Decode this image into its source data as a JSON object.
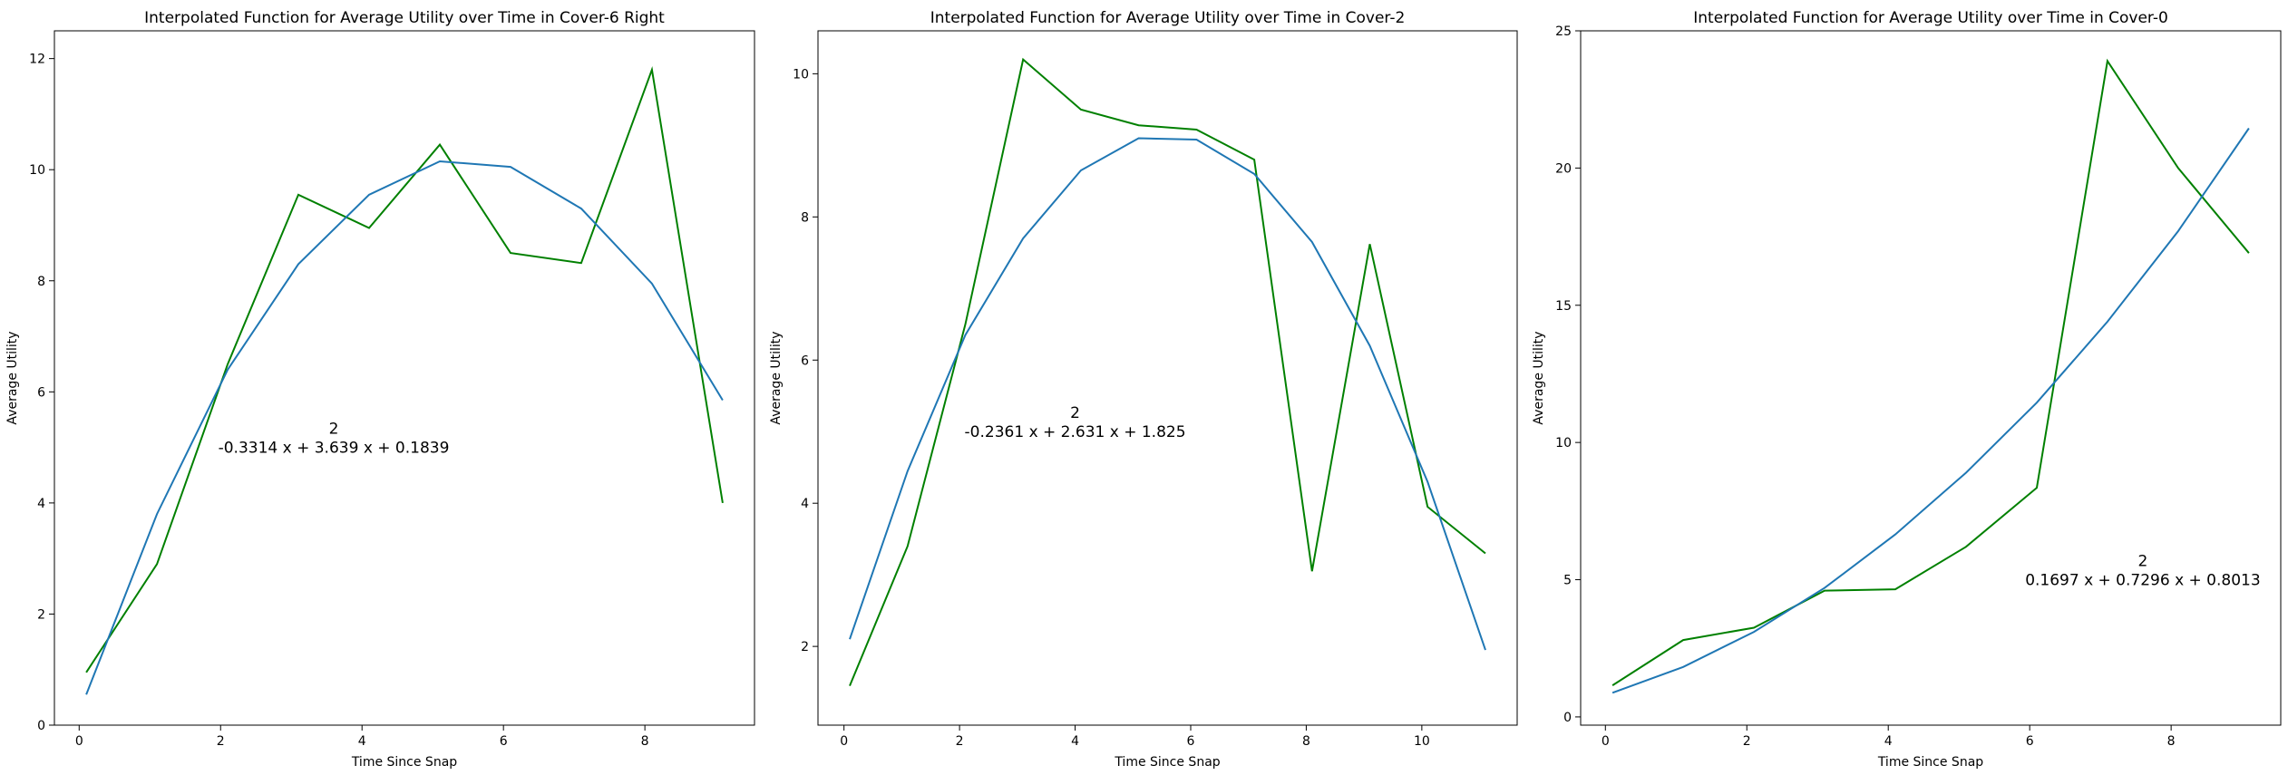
{
  "chart_data": [
    {
      "type": "line",
      "title": "Interpolated Function for Average Utility over Time in Cover-6 Right",
      "xlabel": "Time Since Snap",
      "ylabel": "Average Utility",
      "xlim": [
        -0.35,
        9.55
      ],
      "ylim": [
        0,
        12.5
      ],
      "xticks": [
        0,
        2,
        4,
        6,
        8
      ],
      "yticks": [
        0,
        2,
        4,
        6,
        8,
        10,
        12
      ],
      "grid": false,
      "legend": "none",
      "annotation": {
        "exponent": "2",
        "text": "-0.3314 x + 3.639 x + 0.1839",
        "x": 3.6,
        "y": 5.0
      },
      "series": [
        {
          "color": "#008000",
          "x": [
            0.1,
            1.1,
            2.1,
            3.1,
            4.1,
            5.1,
            6.1,
            7.1,
            8.1,
            9.1
          ],
          "y": [
            0.95,
            2.9,
            6.5,
            9.55,
            8.95,
            10.45,
            8.5,
            8.32,
            11.8,
            4.0
          ]
        },
        {
          "color": "#1f77b4",
          "x": [
            0.1,
            1.1,
            2.1,
            3.1,
            4.1,
            5.1,
            6.1,
            7.1,
            8.1,
            9.1
          ],
          "y": [
            0.55,
            3.8,
            6.4,
            8.3,
            9.55,
            10.15,
            10.05,
            9.3,
            7.95,
            5.85
          ]
        }
      ]
    },
    {
      "type": "line",
      "title": "Interpolated Function for Average Utility over Time in Cover-2",
      "xlabel": "Time Since Snap",
      "ylabel": "Average Utility",
      "xlim": [
        -0.45,
        11.65
      ],
      "ylim": [
        0.9,
        10.6
      ],
      "xticks": [
        0,
        2,
        4,
        6,
        8,
        10
      ],
      "yticks": [
        2,
        4,
        6,
        8,
        10
      ],
      "grid": false,
      "legend": "none",
      "annotation": {
        "exponent": "2",
        "text": "-0.2361 x + 2.631 x + 1.825",
        "x": 4.0,
        "y": 5.0
      },
      "series": [
        {
          "color": "#008000",
          "x": [
            0.1,
            1.1,
            2.1,
            3.1,
            4.1,
            5.1,
            6.1,
            7.1,
            8.1,
            9.1,
            10.1,
            11.1
          ],
          "y": [
            1.45,
            3.4,
            6.5,
            10.2,
            9.5,
            9.28,
            9.22,
            8.8,
            3.05,
            7.62,
            3.95,
            3.3
          ]
        },
        {
          "color": "#1f77b4",
          "x": [
            0.1,
            1.1,
            2.1,
            3.1,
            4.1,
            5.1,
            6.1,
            7.1,
            8.1,
            9.1,
            10.1,
            11.1
          ],
          "y": [
            2.1,
            4.45,
            6.35,
            7.7,
            8.65,
            9.1,
            9.08,
            8.6,
            7.65,
            6.2,
            4.3,
            1.95
          ]
        }
      ]
    },
    {
      "type": "line",
      "title": "Interpolated Function for Average Utility over Time in Cover-0",
      "xlabel": "Time Since Snap",
      "ylabel": "Average Utility",
      "xlim": [
        -0.35,
        9.55
      ],
      "ylim": [
        -0.3,
        25.0
      ],
      "xticks": [
        0,
        2,
        4,
        6,
        8
      ],
      "yticks": [
        0,
        5,
        10,
        15,
        20,
        25
      ],
      "grid": false,
      "legend": "none",
      "annotation": {
        "exponent": "2",
        "text": "0.1697 x + 0.7296 x + 0.8013",
        "x": 7.6,
        "y": 5.0
      },
      "series": [
        {
          "color": "#008000",
          "x": [
            0.1,
            1.1,
            2.1,
            3.1,
            4.1,
            5.1,
            6.1,
            7.1,
            8.1,
            9.1
          ],
          "y": [
            1.15,
            2.8,
            3.25,
            4.6,
            4.65,
            6.2,
            8.35,
            23.9,
            20.0,
            16.9
          ]
        },
        {
          "color": "#1f77b4",
          "x": [
            0.1,
            1.1,
            2.1,
            3.1,
            4.1,
            5.1,
            6.1,
            7.1,
            8.1,
            9.1
          ],
          "y": [
            0.88,
            1.82,
            3.1,
            4.7,
            6.65,
            8.9,
            11.45,
            14.4,
            17.7,
            21.45
          ]
        }
      ]
    }
  ]
}
